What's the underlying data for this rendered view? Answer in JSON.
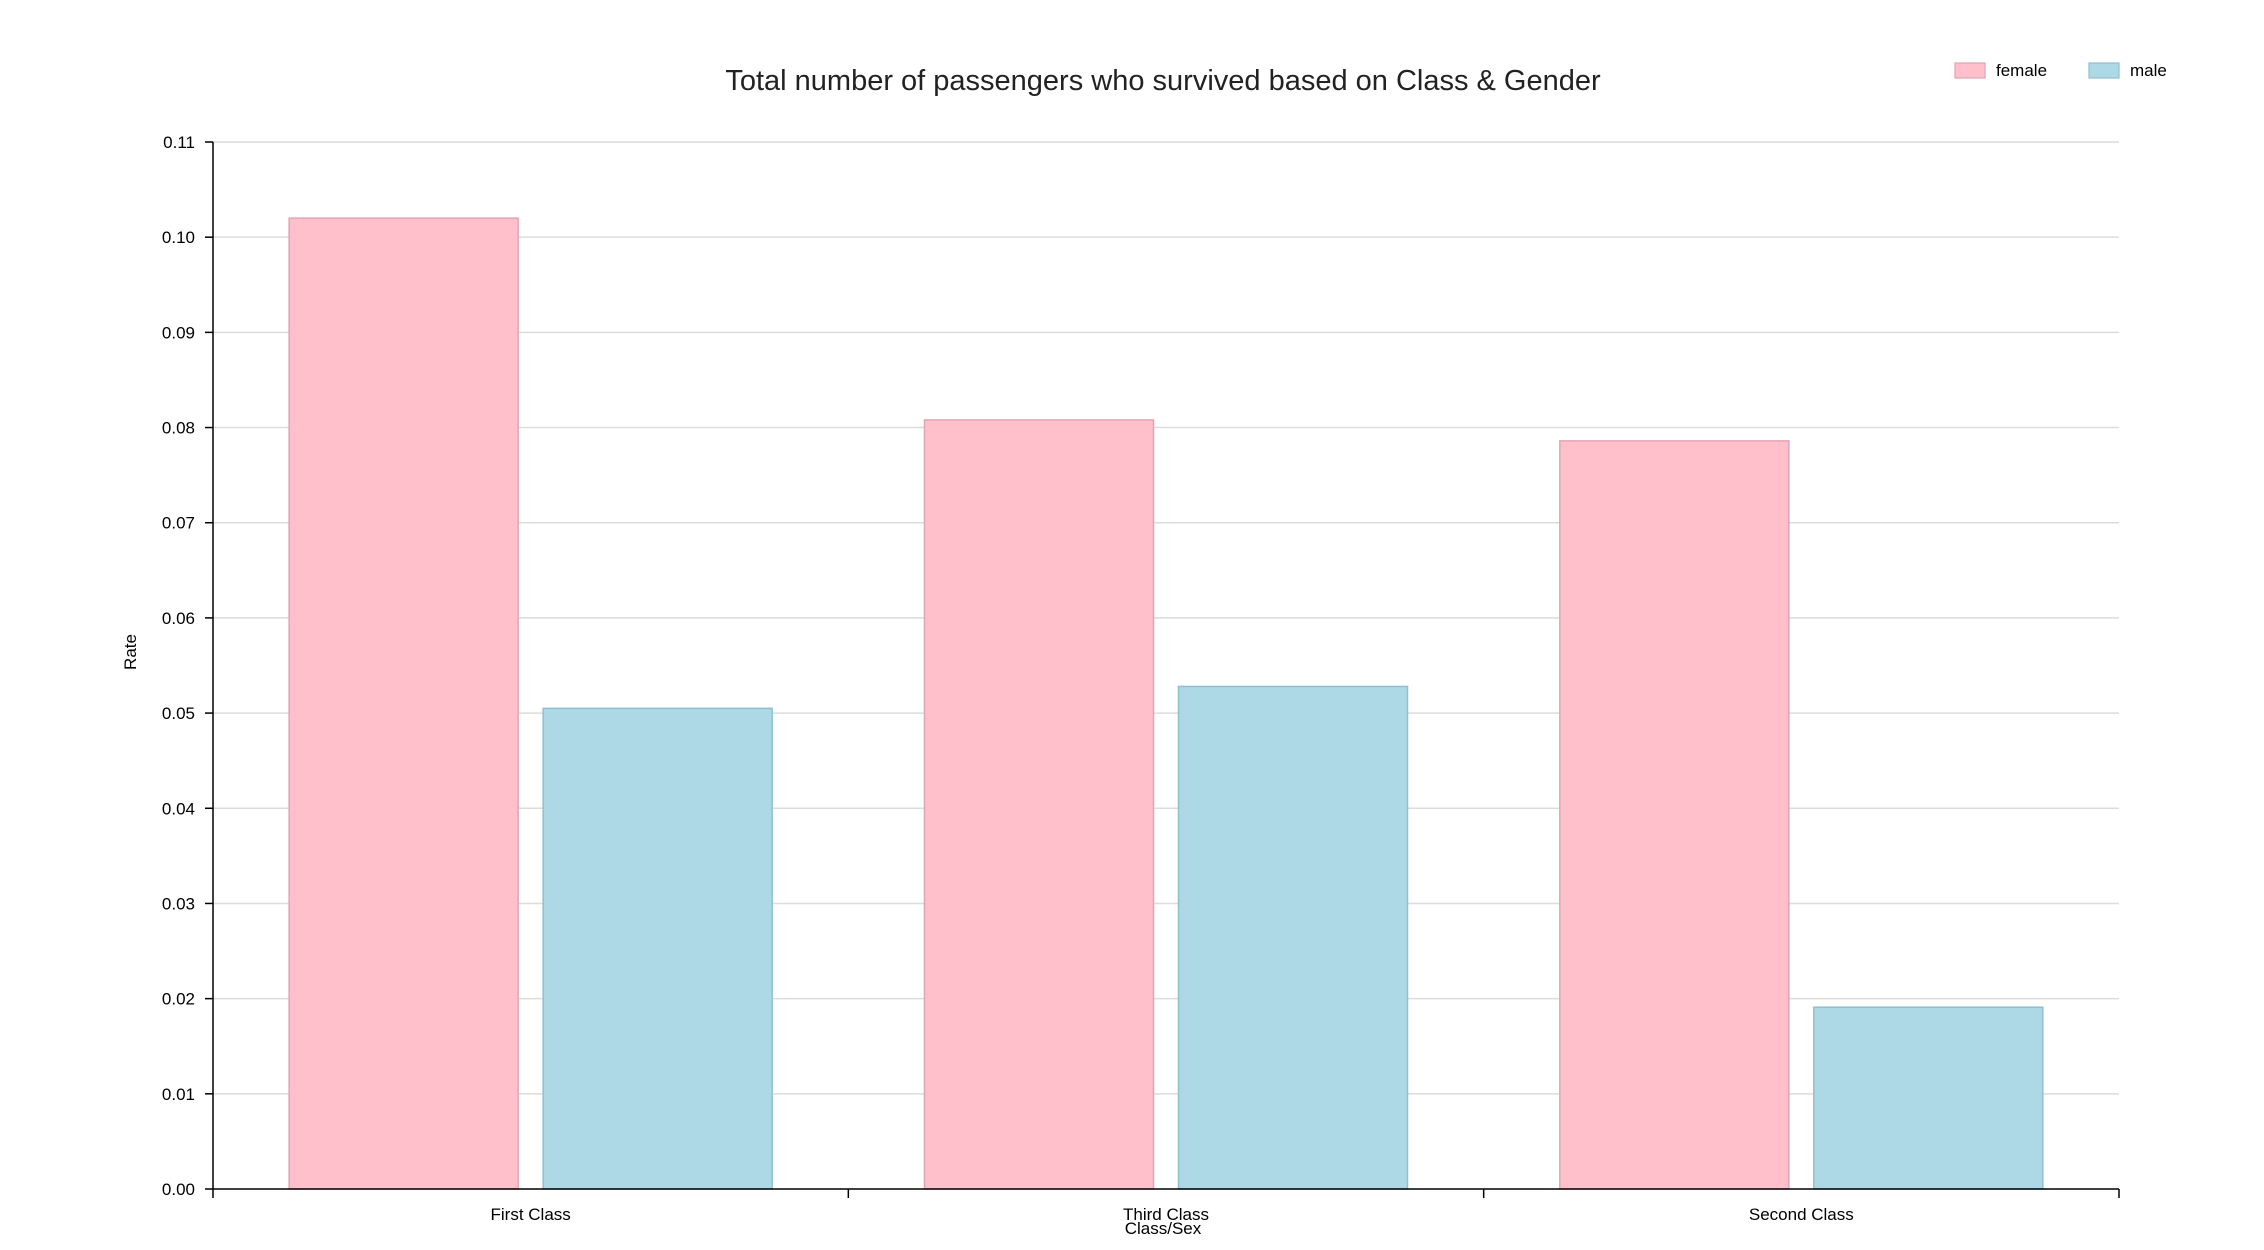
{
  "chart_data": {
    "type": "bar",
    "title": "Total number of passengers who survived based on Class & Gender",
    "xlabel": "Class/Sex",
    "ylabel": "Rate",
    "categories": [
      "First Class",
      "Third Class",
      "Second Class"
    ],
    "series": [
      {
        "name": "female",
        "values": [
          0.102,
          0.0808,
          0.0786
        ],
        "color": "#ffc0cb"
      },
      {
        "name": "male",
        "values": [
          0.0505,
          0.0528,
          0.0191
        ],
        "color": "#add8e6"
      }
    ],
    "ylim": [
      0,
      0.11
    ],
    "yticks": [
      "0.00",
      "0.01",
      "0.02",
      "0.03",
      "0.04",
      "0.05",
      "0.06",
      "0.07",
      "0.08",
      "0.09",
      "0.10",
      "0.11"
    ],
    "grid": true,
    "legend_position": "top-right"
  }
}
